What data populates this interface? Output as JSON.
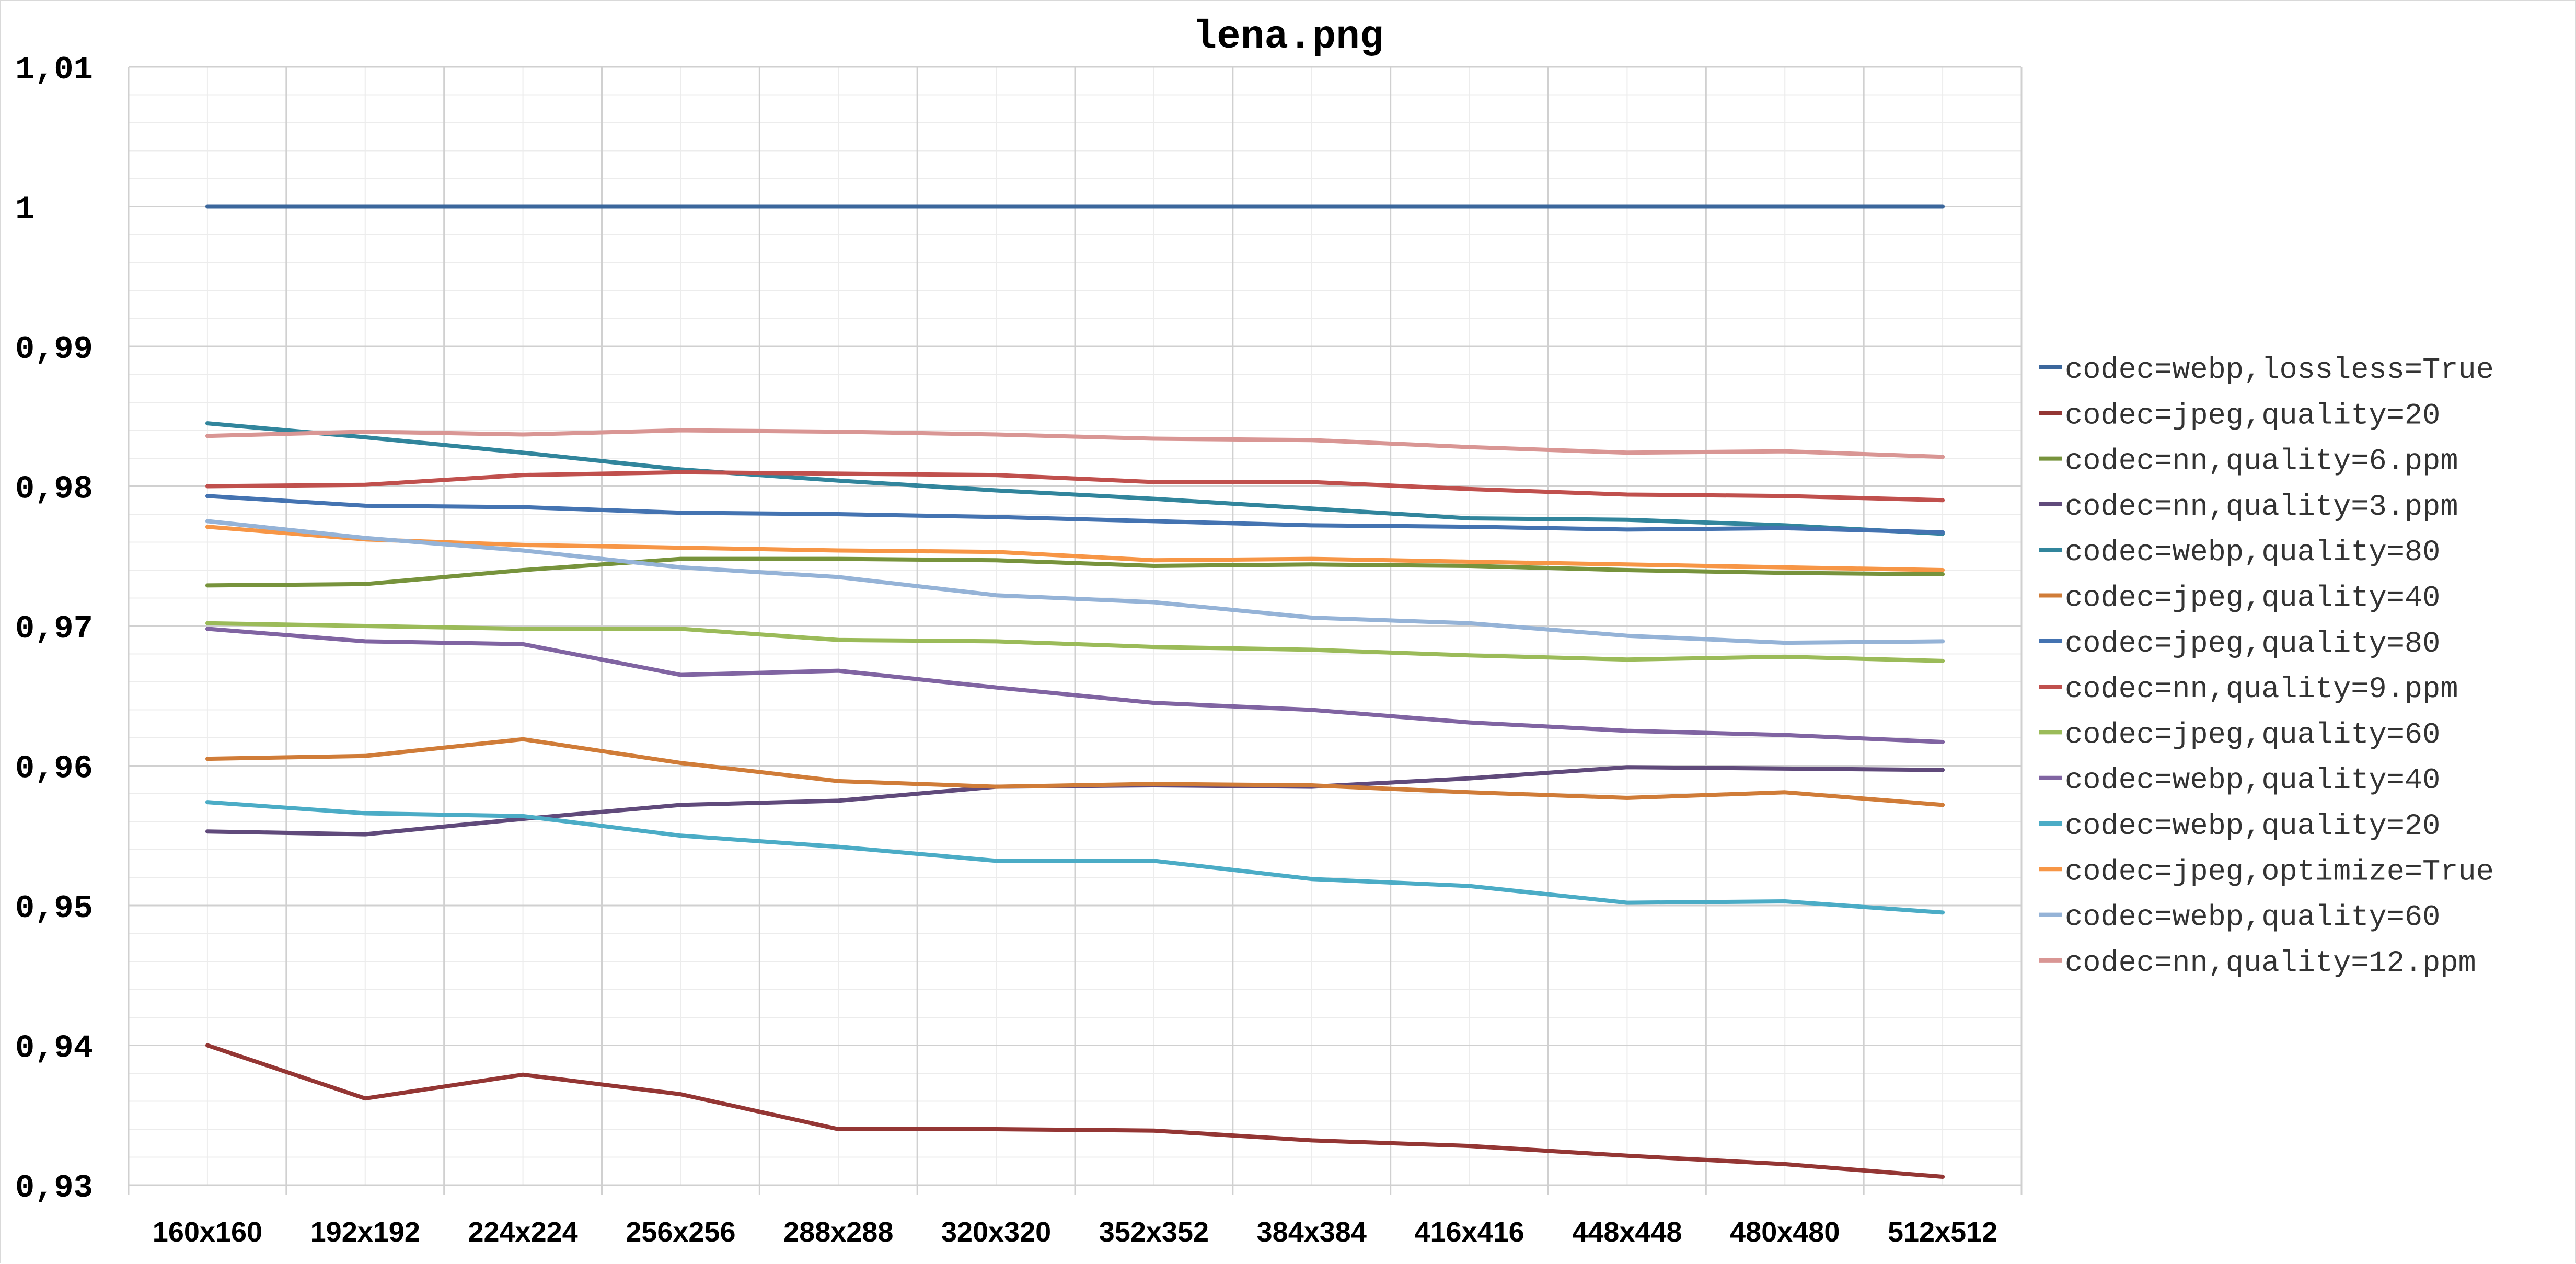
{
  "chart_data": {
    "type": "line",
    "title": "lena.png",
    "xlabel": "",
    "ylabel": "",
    "ylim": [
      0.93,
      1.01
    ],
    "y_tick_labels": [
      "1,01",
      "1",
      "0,99",
      "0,98",
      "0,97",
      "0,96",
      "0,95",
      "0,94",
      "0,93"
    ],
    "categories": [
      "160x160",
      "192x192",
      "224x224",
      "256x256",
      "288x288",
      "320x320",
      "352x352",
      "384x384",
      "416x416",
      "448x448",
      "480x480",
      "512x512"
    ],
    "grid": true,
    "legend_position": "right",
    "series": [
      {
        "name": "codec=webp,lossless=True",
        "color": "#3b679c",
        "values": [
          1.0,
          1.0,
          1.0,
          1.0,
          1.0,
          1.0,
          1.0,
          1.0,
          1.0,
          1.0,
          1.0,
          1.0
        ]
      },
      {
        "name": "codec=jpeg,quality=20",
        "color": "#943634",
        "values": [
          0.94,
          0.9362,
          0.9379,
          0.9365,
          0.934,
          0.934,
          0.9339,
          0.9332,
          0.9328,
          0.9321,
          0.9315,
          0.9306
        ]
      },
      {
        "name": "codec=nn,quality=6.ppm",
        "color": "#77933c",
        "values": [
          0.9729,
          0.973,
          0.974,
          0.9748,
          0.9748,
          0.9747,
          0.9743,
          0.9744,
          0.9743,
          0.974,
          0.9738,
          0.9737
        ]
      },
      {
        "name": "codec=nn,quality=3.ppm",
        "color": "#604a7b",
        "values": [
          0.9553,
          0.9551,
          0.9562,
          0.9572,
          0.9575,
          0.9585,
          0.9586,
          0.9585,
          0.9591,
          0.9599,
          0.9598,
          0.9597
        ]
      },
      {
        "name": "codec=webp,quality=80",
        "color": "#31859c",
        "values": [
          0.9845,
          0.9835,
          0.9824,
          0.9812,
          0.9804,
          0.9797,
          0.9791,
          0.9784,
          0.9777,
          0.9776,
          0.9772,
          0.9766
        ]
      },
      {
        "name": "codec=jpeg,quality=40",
        "color": "#d07c38",
        "values": [
          0.9605,
          0.9607,
          0.9619,
          0.9602,
          0.9589,
          0.9585,
          0.9587,
          0.9586,
          0.9581,
          0.9577,
          0.9581,
          0.9572
        ]
      },
      {
        "name": "codec=jpeg,quality=80",
        "color": "#4473b1",
        "values": [
          0.9793,
          0.9786,
          0.9785,
          0.9781,
          0.978,
          0.9778,
          0.9775,
          0.9772,
          0.9771,
          0.9769,
          0.977,
          0.9767
        ]
      },
      {
        "name": "codec=nn,quality=9.ppm",
        "color": "#c0504d",
        "values": [
          0.98,
          0.9801,
          0.9808,
          0.981,
          0.9809,
          0.9808,
          0.9803,
          0.9803,
          0.9798,
          0.9794,
          0.9793,
          0.979
        ]
      },
      {
        "name": "codec=jpeg,quality=60",
        "color": "#9bbb59",
        "values": [
          0.9702,
          0.97,
          0.9698,
          0.9698,
          0.969,
          0.9689,
          0.9685,
          0.9683,
          0.9679,
          0.9676,
          0.9678,
          0.9675
        ]
      },
      {
        "name": "codec=webp,quality=40",
        "color": "#8064a2",
        "values": [
          0.9698,
          0.9689,
          0.9687,
          0.9665,
          0.9668,
          0.9656,
          0.9645,
          0.964,
          0.9631,
          0.9625,
          0.9622,
          0.9617
        ]
      },
      {
        "name": "codec=webp,quality=20",
        "color": "#4bacc6",
        "values": [
          0.9574,
          0.9566,
          0.9564,
          0.955,
          0.9542,
          0.9532,
          0.9532,
          0.9519,
          0.9514,
          0.9502,
          0.9503,
          0.9495
        ]
      },
      {
        "name": "codec=jpeg,optimize=True",
        "color": "#f79646",
        "values": [
          0.9771,
          0.9762,
          0.9758,
          0.9756,
          0.9754,
          0.9753,
          0.9747,
          0.9748,
          0.9746,
          0.9744,
          0.9742,
          0.974
        ]
      },
      {
        "name": "codec=webp,quality=60",
        "color": "#95b3d7",
        "values": [
          0.9775,
          0.9763,
          0.9754,
          0.9742,
          0.9735,
          0.9722,
          0.9717,
          0.9706,
          0.9702,
          0.9693,
          0.9688,
          0.9689
        ]
      },
      {
        "name": "codec=nn,quality=12.ppm",
        "color": "#d99694",
        "values": [
          0.9836,
          0.9839,
          0.9837,
          0.984,
          0.9839,
          0.9837,
          0.9834,
          0.9833,
          0.9828,
          0.9824,
          0.9825,
          0.9821
        ]
      }
    ]
  }
}
